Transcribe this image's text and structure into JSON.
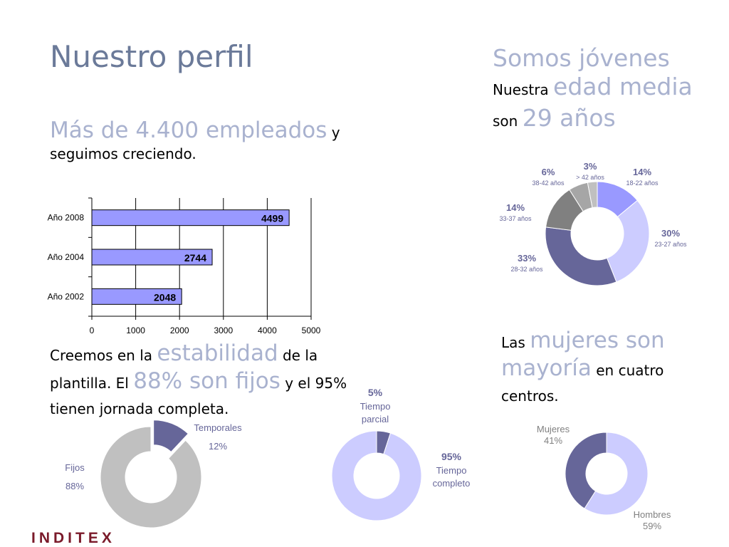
{
  "header": {
    "title": "Nuestro perfil",
    "sub_big": "Más de 4.400 empleados",
    "sub_rest": " y seguimos creciendo."
  },
  "age_header": {
    "title": "Somos jóvenes",
    "l1_small": "Nuestra ",
    "l1_big": "edad media",
    "l2_small": "son ",
    "l2_big": "29 años"
  },
  "stability_text": {
    "p1": "Creemos en la ",
    "b1": "estabilidad",
    "p2": " de la plantilla. El ",
    "b2": "88% son fijos",
    "p3": " y el 95% tienen jornada completa."
  },
  "women_text": {
    "p1": "Las ",
    "b1": "mujeres son mayoría",
    "p2": " en cuatro centros."
  },
  "logo": {
    "text": "INDITEX"
  },
  "chart_data": [
    {
      "type": "bar",
      "orientation": "horizontal",
      "categories": [
        "Año 2008",
        "Año 2004",
        "Año 2002"
      ],
      "values": [
        4499,
        2744,
        2048
      ],
      "data_labels": [
        "4499",
        "2744",
        "2048"
      ],
      "xlim": [
        0,
        5000
      ],
      "xticks": [
        "0",
        "1000",
        "2000",
        "3000",
        "4000",
        "5000"
      ],
      "grid": true,
      "bar_color": "#9999ff"
    },
    {
      "type": "pie",
      "donut": true,
      "slices": [
        {
          "pct": "14%",
          "label": "18-22 años",
          "value": 14,
          "color": "#9999ff"
        },
        {
          "pct": "30%",
          "label": "23-27 años",
          "value": 30,
          "color": "#ccccff"
        },
        {
          "pct": "33%",
          "label": "28-32 años",
          "value": 33,
          "color": "#666699"
        },
        {
          "pct": "14%",
          "label": "33-37 años",
          "value": 14,
          "color": "#808080"
        },
        {
          "pct": "6%",
          "label": "38-42 años",
          "value": 6,
          "color": "#a6a6a6"
        },
        {
          "pct": "3%",
          "label": "> 42 años",
          "value": 3,
          "color": "#c0c0c0"
        }
      ]
    },
    {
      "type": "pie",
      "donut": true,
      "slices": [
        {
          "label": "Temporales",
          "pct": "12%",
          "value": 12,
          "color": "#666699",
          "exploded": true
        },
        {
          "label": "Fijos",
          "pct": "88%",
          "value": 88,
          "color": "#c0c0c0"
        }
      ]
    },
    {
      "type": "pie",
      "donut": true,
      "slices": [
        {
          "pct": "5%",
          "label1": "Tiempo",
          "label2": "parcial",
          "value": 5,
          "color": "#666699"
        },
        {
          "pct": "95%",
          "label1": "Tiempo",
          "label2": "completo",
          "value": 95,
          "color": "#ccccff"
        }
      ]
    },
    {
      "type": "pie",
      "donut": true,
      "slices": [
        {
          "label": "Hombres",
          "pct": "59%",
          "value": 59,
          "color": "#ccccff"
        },
        {
          "label": "Mujeres",
          "pct": "41%",
          "value": 41,
          "color": "#666699"
        }
      ]
    }
  ]
}
